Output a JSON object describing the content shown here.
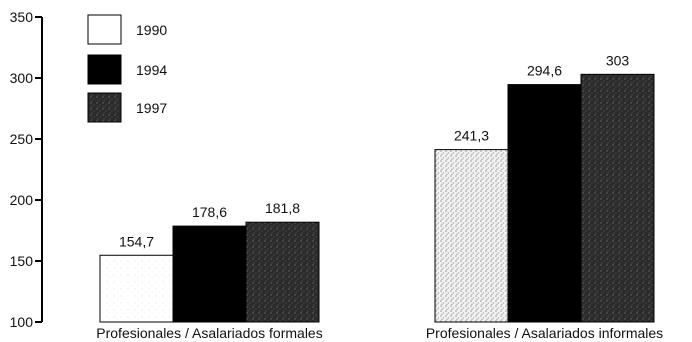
{
  "chart_data": {
    "type": "bar",
    "title": "",
    "xlabel": "",
    "ylabel": "",
    "ylim": [
      100,
      350
    ],
    "yticks": [
      100,
      150,
      200,
      250,
      300,
      350
    ],
    "categories": [
      "Profesionales / Asalariados formales",
      "Profesionales / Asalariados informales"
    ],
    "series": [
      {
        "name": "1990",
        "values": [
          154.7,
          241.3
        ],
        "labels": [
          "154,7",
          "241,3"
        ],
        "color": "#ffffff",
        "pattern": "none"
      },
      {
        "name": "1994",
        "values": [
          178.6,
          294.6
        ],
        "labels": [
          "178,6",
          "294,6"
        ],
        "color": "#000000",
        "pattern": "solid"
      },
      {
        "name": "1997",
        "values": [
          181.8,
          303
        ],
        "labels": [
          "181,8",
          "303"
        ],
        "color": "#333333",
        "pattern": "stipple"
      }
    ],
    "legend_position": "top-left",
    "grid": false
  }
}
